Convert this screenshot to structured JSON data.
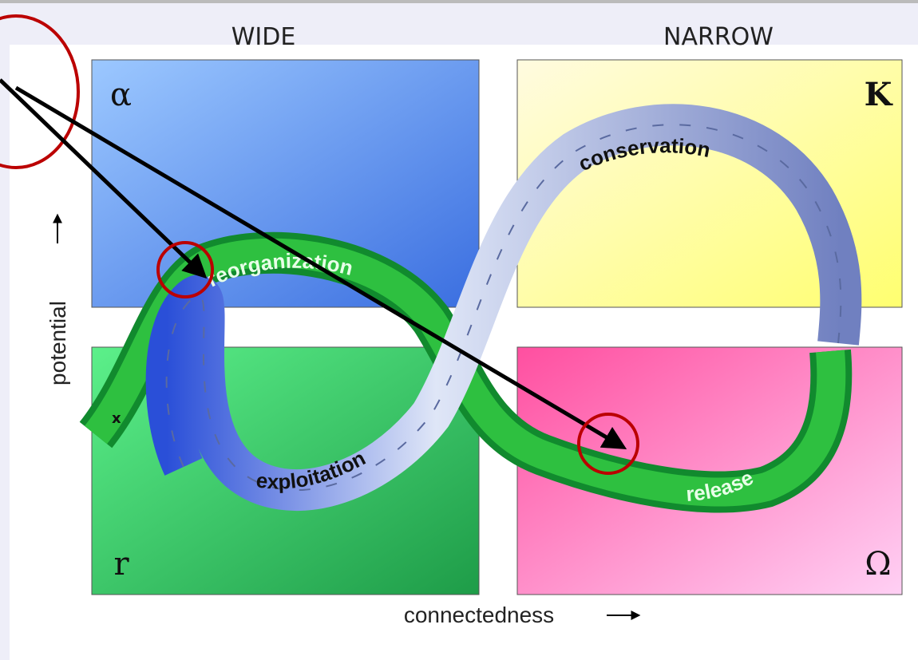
{
  "header": {
    "left": "WIDE",
    "right": "NARROW"
  },
  "quadrants": [
    {
      "label": "α"
    },
    {
      "label": "K"
    },
    {
      "label": "r"
    },
    {
      "label": "Ω"
    }
  ],
  "axes": {
    "y": "potential",
    "x": "connectedness"
  },
  "phases": {
    "conservation": "conservation",
    "reorganization": "reorganization",
    "exploitation": "exploitation",
    "release": "release"
  },
  "marker": "x"
}
